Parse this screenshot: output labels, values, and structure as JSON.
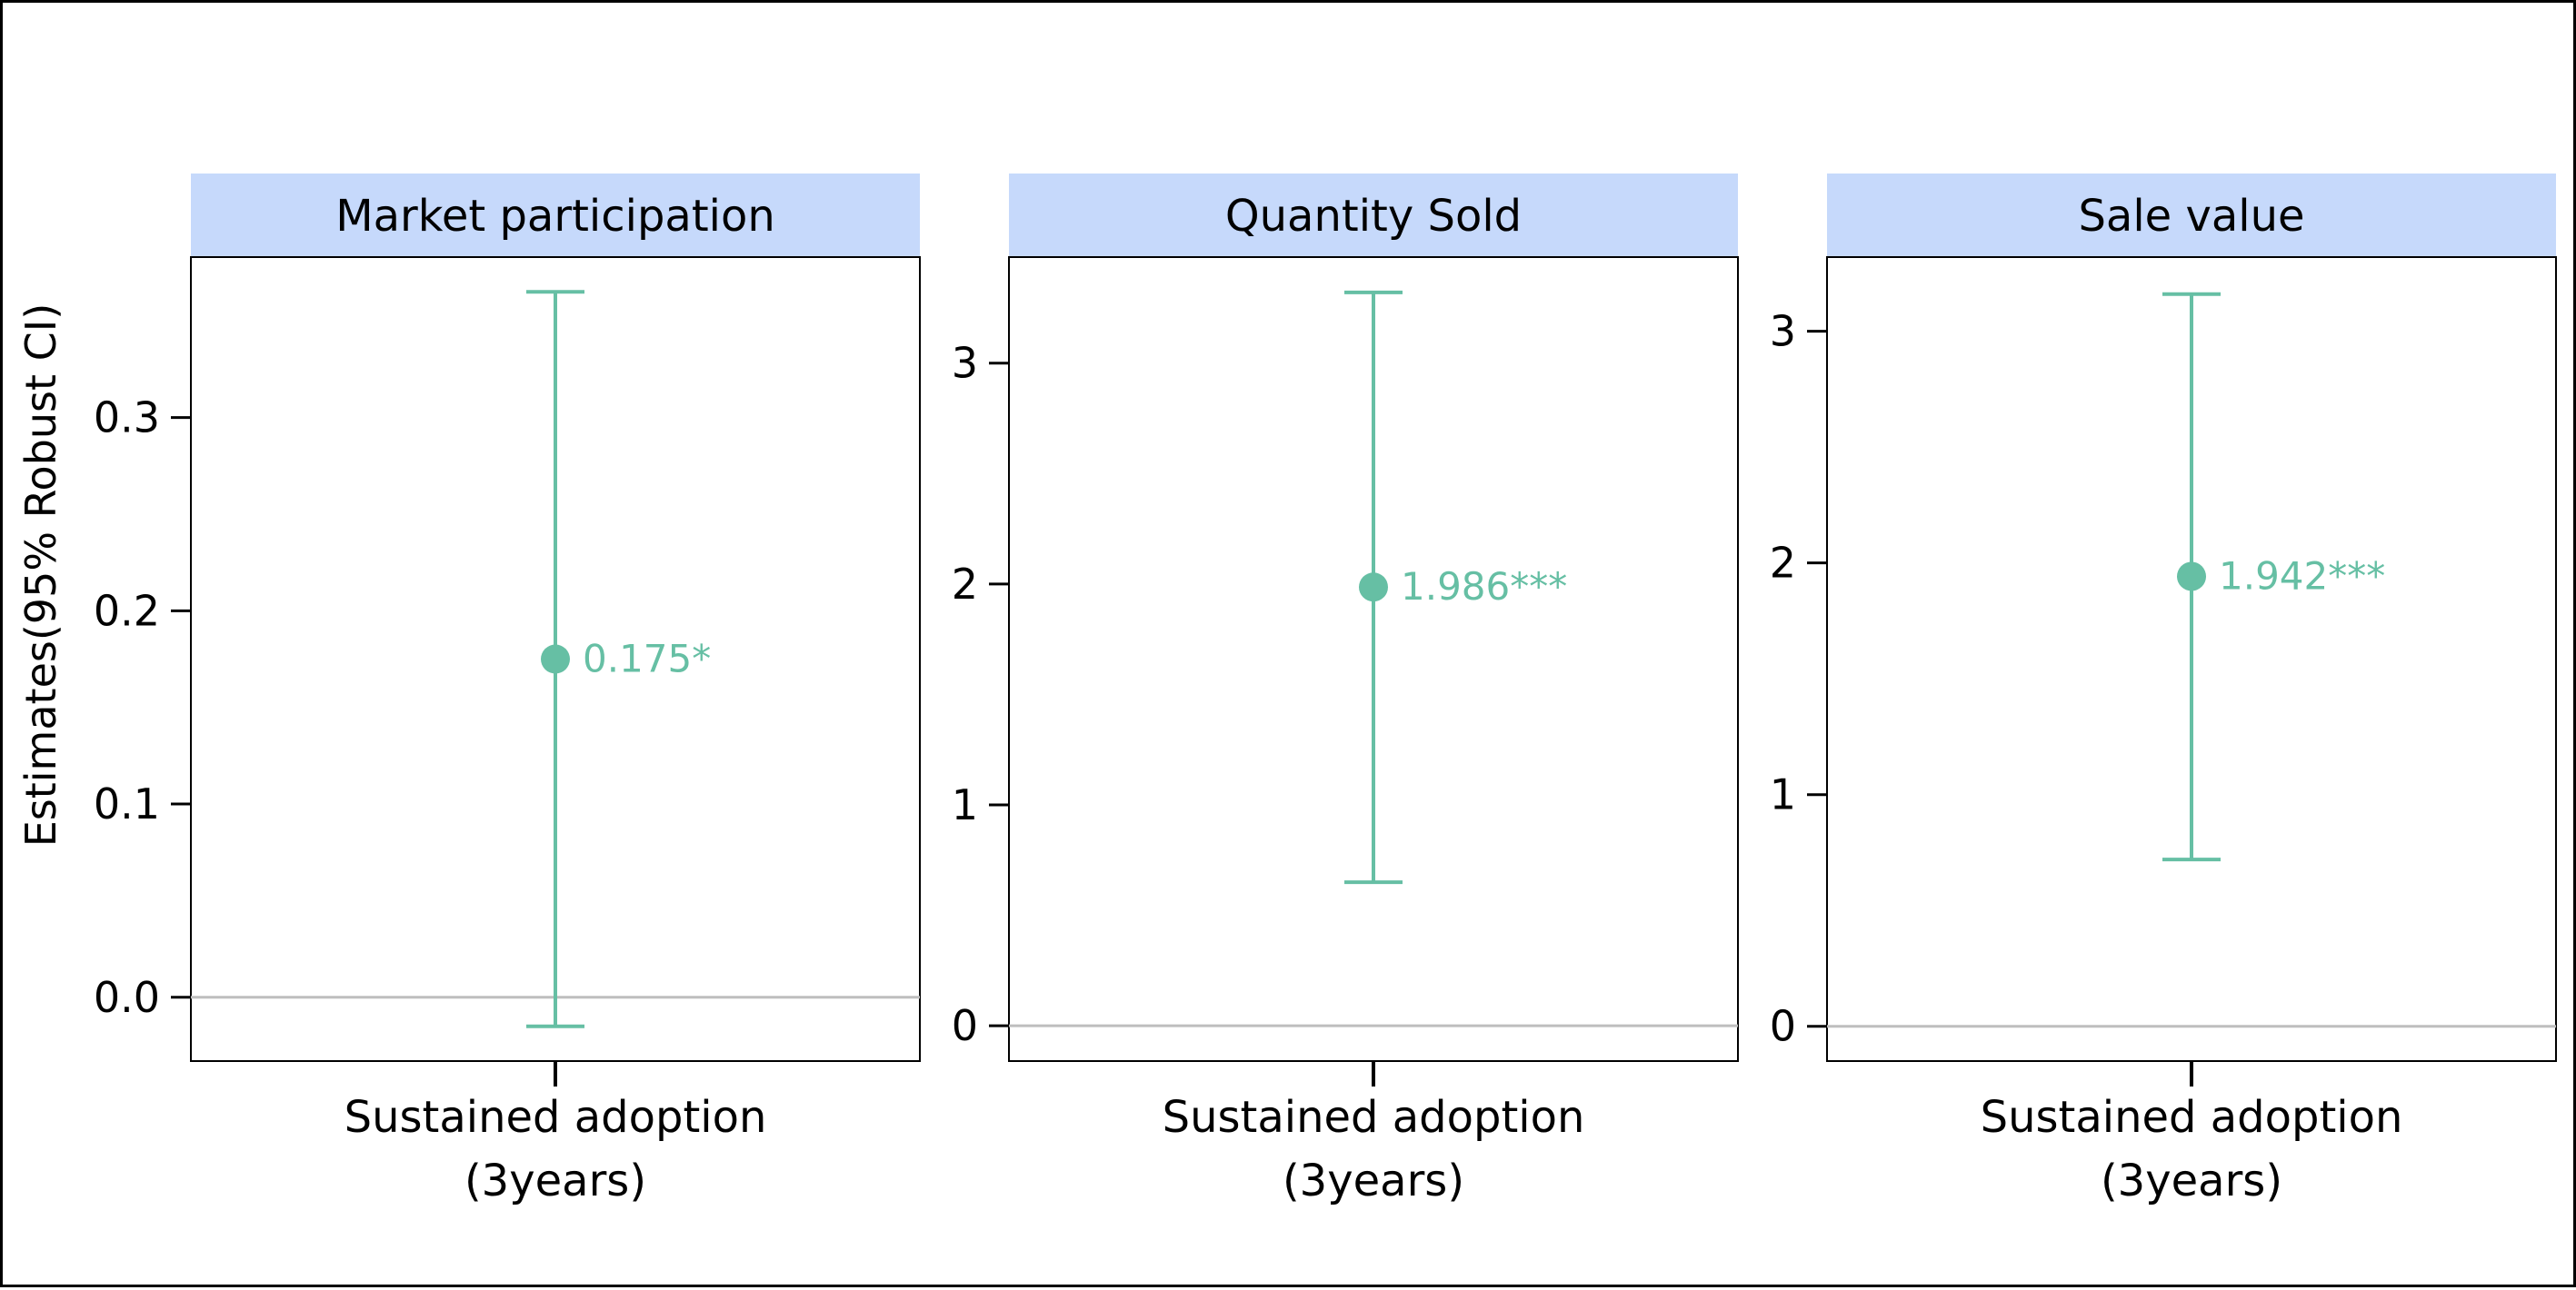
{
  "colors": {
    "accent": "#66BFA4",
    "strip_fill": "#C6D9FB",
    "zero_line": "#BEBEBE",
    "axis": "#000000",
    "text": "#000000"
  },
  "chart_data": {
    "type": "scatter",
    "ylabel": "Estimates(95% Robust CI)",
    "panels": [
      {
        "title": "Market participation",
        "category": "Sustained adoption\n(3years)",
        "estimate": 0.175,
        "ci": [
          -0.015,
          0.365
        ],
        "label": "0.175*",
        "ylim": [
          -0.033,
          0.383
        ],
        "yticks": [
          0.0,
          0.1,
          0.2,
          0.3
        ],
        "ytick_labels": [
          "0.0",
          "0.1",
          "0.2",
          "0.3"
        ],
        "reference_line": 0
      },
      {
        "title": "Quantity Sold",
        "category": "Sustained adoption\n(3years)",
        "estimate": 1.986,
        "ci": [
          0.65,
          3.32
        ],
        "label": "1.986***",
        "ylim": [
          -0.16,
          3.48
        ],
        "yticks": [
          0,
          1,
          2,
          3
        ],
        "ytick_labels": [
          "0",
          "1",
          "2",
          "3"
        ],
        "reference_line": 0
      },
      {
        "title": "Sale value",
        "category": "Sustained adoption\n(3years)",
        "estimate": 1.942,
        "ci": [
          0.72,
          3.16
        ],
        "label": "1.942***",
        "ylim": [
          -0.15,
          3.32
        ],
        "yticks": [
          0,
          1,
          2,
          3
        ],
        "ytick_labels": [
          "0",
          "1",
          "2",
          "3"
        ],
        "reference_line": 0
      }
    ]
  }
}
